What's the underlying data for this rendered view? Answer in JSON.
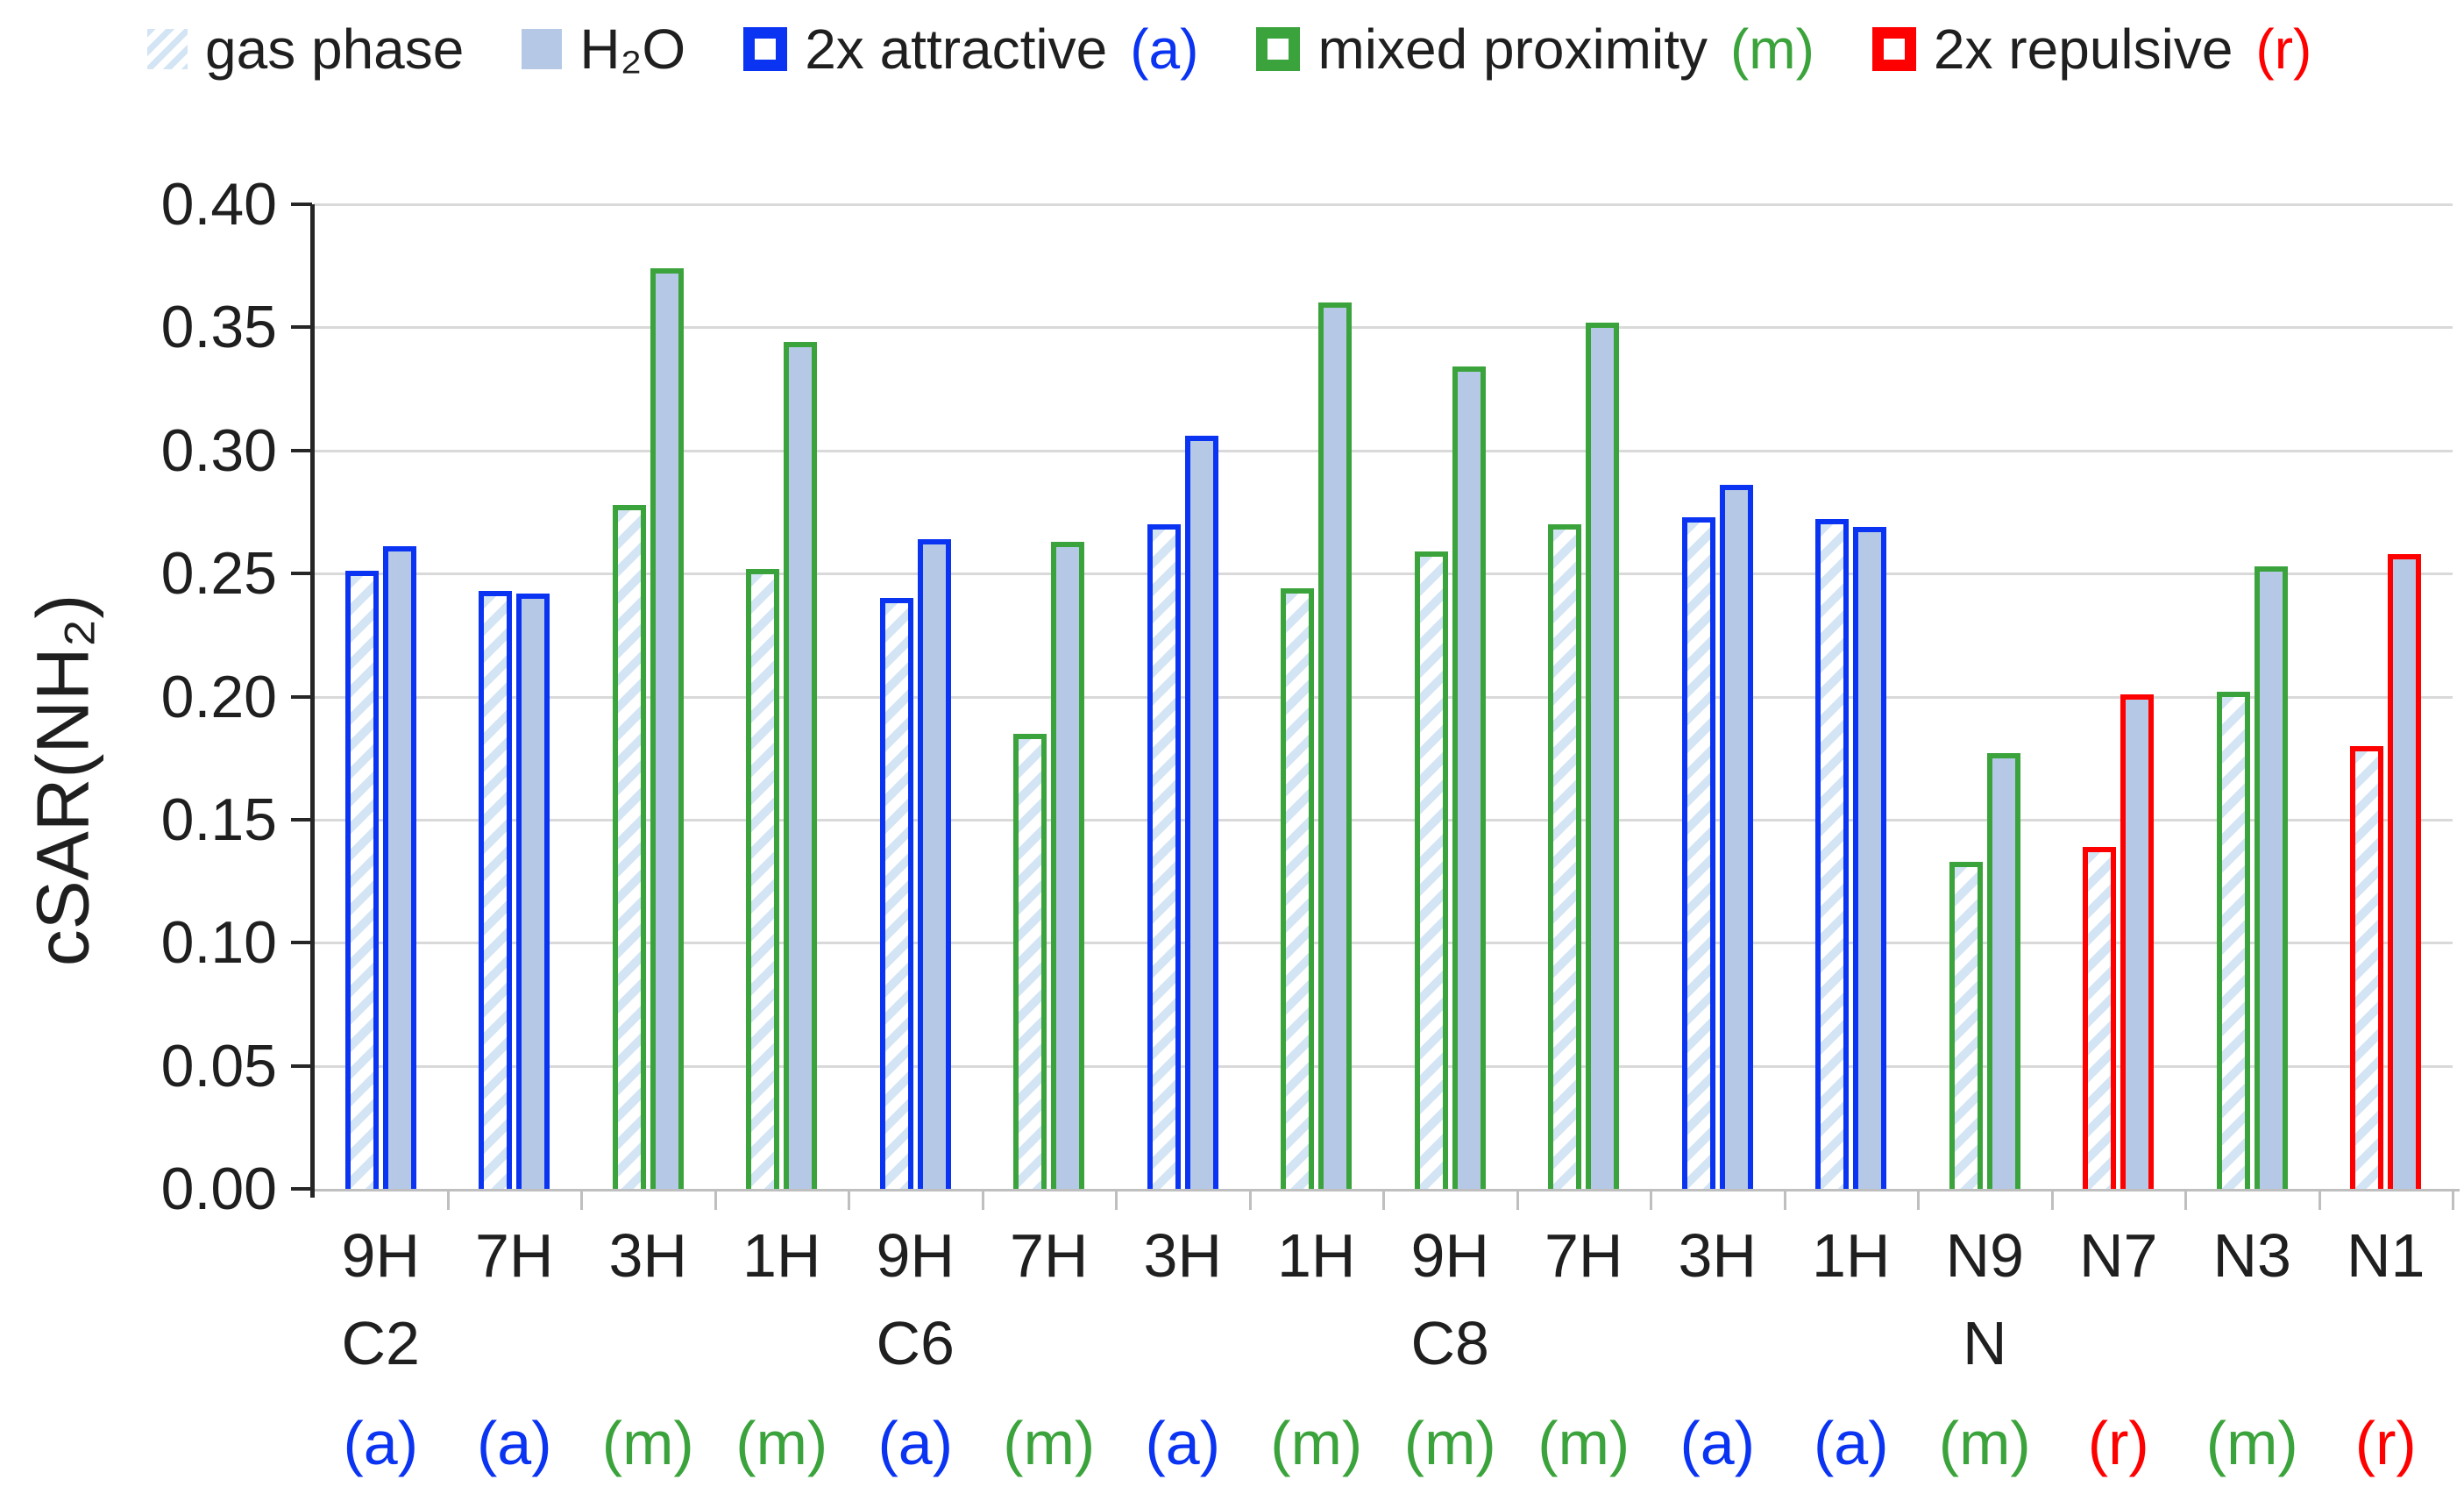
{
  "legend": {
    "items": [
      {
        "label": "gas phase",
        "suffix": "",
        "swatch": "hatched"
      },
      {
        "label": "H₂O",
        "suffix": "",
        "swatch": "solid"
      },
      {
        "label": "2x attractive",
        "suffix": "(a)",
        "swatch": "outline-a"
      },
      {
        "label": "mixed proximity",
        "suffix": "(m)",
        "swatch": "outline-m"
      },
      {
        "label": "2x repulsive",
        "suffix": "(r)",
        "swatch": "outline-r"
      }
    ]
  },
  "colors": {
    "solid_fill": "#b5c9e6",
    "hatch_stripe": "#d3e4f4",
    "attractive_blue": "#0a33f2",
    "mixed_green": "#3ba33b",
    "repulsive_red": "#ff0000",
    "gridline": "#d9d9d9",
    "x_axis": "#bfbfbf",
    "y_axis": "#262626",
    "text": "#1f1f1f"
  },
  "chart_data": {
    "type": "bar",
    "title": "",
    "xlabel": "",
    "ylabel": "cSAR(NH₂)",
    "ylim": [
      0.0,
      0.4
    ],
    "ytick_step": 0.05,
    "ytick_labels": [
      "0.00",
      "0.05",
      "0.10",
      "0.15",
      "0.20",
      "0.25",
      "0.30",
      "0.35",
      "0.40"
    ],
    "grid": "horizontal",
    "legend_position": "top",
    "series": [
      {
        "name": "gas phase",
        "style": "hatched"
      },
      {
        "name": "H₂O",
        "style": "solid"
      }
    ],
    "outline_types": {
      "(a)": {
        "meaning": "2x attractive",
        "color": "#0a33f2"
      },
      "(m)": {
        "meaning": "mixed proximity",
        "color": "#3ba33b"
      },
      "(r)": {
        "meaning": "2x repulsive",
        "color": "#ff0000"
      }
    },
    "categories": [
      {
        "label": "9H",
        "group": "C2",
        "type": "(a)",
        "gas_phase": 0.251,
        "h2o": 0.261
      },
      {
        "label": "7H",
        "group": "",
        "type": "(a)",
        "gas_phase": 0.243,
        "h2o": 0.242
      },
      {
        "label": "3H",
        "group": "",
        "type": "(m)",
        "gas_phase": 0.278,
        "h2o": 0.374
      },
      {
        "label": "1H",
        "group": "",
        "type": "(m)",
        "gas_phase": 0.252,
        "h2o": 0.344
      },
      {
        "label": "9H",
        "group": "C6",
        "type": "(a)",
        "gas_phase": 0.24,
        "h2o": 0.264
      },
      {
        "label": "7H",
        "group": "",
        "type": "(m)",
        "gas_phase": 0.185,
        "h2o": 0.263
      },
      {
        "label": "3H",
        "group": "",
        "type": "(a)",
        "gas_phase": 0.27,
        "h2o": 0.306
      },
      {
        "label": "1H",
        "group": "",
        "type": "(m)",
        "gas_phase": 0.244,
        "h2o": 0.36
      },
      {
        "label": "9H",
        "group": "C8",
        "type": "(m)",
        "gas_phase": 0.259,
        "h2o": 0.334
      },
      {
        "label": "7H",
        "group": "",
        "type": "(m)",
        "gas_phase": 0.27,
        "h2o": 0.352
      },
      {
        "label": "3H",
        "group": "",
        "type": "(a)",
        "gas_phase": 0.273,
        "h2o": 0.286
      },
      {
        "label": "1H",
        "group": "",
        "type": "(a)",
        "gas_phase": 0.272,
        "h2o": 0.269
      },
      {
        "label": "N9",
        "group": "N",
        "type": "(m)",
        "gas_phase": 0.133,
        "h2o": 0.177
      },
      {
        "label": "N7",
        "group": "",
        "type": "(r)",
        "gas_phase": 0.139,
        "h2o": 0.201
      },
      {
        "label": "N3",
        "group": "",
        "type": "(m)",
        "gas_phase": 0.202,
        "h2o": 0.253
      },
      {
        "label": "N1",
        "group": "",
        "type": "(r)",
        "gas_phase": 0.18,
        "h2o": 0.258
      }
    ]
  }
}
